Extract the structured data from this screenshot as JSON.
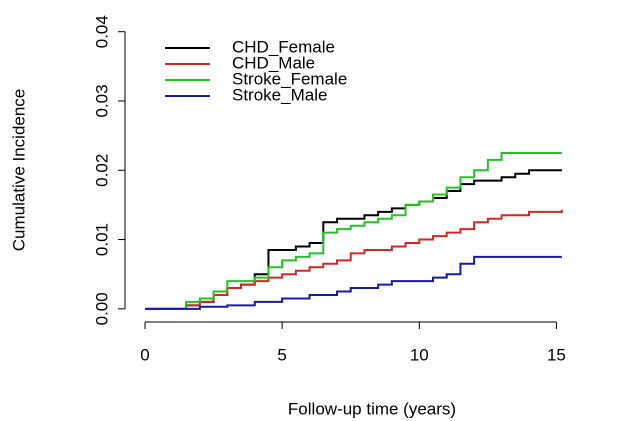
{
  "chart_data": {
    "type": "step",
    "x_label": "Follow-up time (years)",
    "y_label": "Cumulative Incidence",
    "x": [
      0,
      1,
      1.5,
      2,
      2.5,
      3,
      3.5,
      4,
      4.5,
      5,
      5.5,
      6,
      6.5,
      7,
      7.5,
      8,
      8.5,
      9,
      9.5,
      10,
      10.5,
      11,
      11.5,
      12,
      12.5,
      13,
      13.5,
      14,
      15.2
    ],
    "series": [
      {
        "name": "CHD_Female",
        "color": "#000000",
        "values": [
          0,
          0,
          0.0005,
          0.001,
          0.002,
          0.003,
          0.0035,
          0.005,
          0.0085,
          0.0085,
          0.009,
          0.0095,
          0.0125,
          0.013,
          0.013,
          0.0135,
          0.014,
          0.0145,
          0.015,
          0.0155,
          0.016,
          0.017,
          0.018,
          0.0185,
          0.0185,
          0.019,
          0.0195,
          0.02,
          0.02
        ]
      },
      {
        "name": "CHD_Male",
        "color": "#d62728",
        "values": [
          0,
          0,
          0.0005,
          0.001,
          0.002,
          0.003,
          0.0035,
          0.004,
          0.0045,
          0.005,
          0.0055,
          0.006,
          0.0065,
          0.007,
          0.008,
          0.0085,
          0.0085,
          0.009,
          0.0095,
          0.01,
          0.0105,
          0.011,
          0.0115,
          0.0125,
          0.013,
          0.0135,
          0.0135,
          0.014,
          0.0143
        ]
      },
      {
        "name": "Stroke_Female",
        "color": "#22c522",
        "values": [
          0,
          0,
          0.001,
          0.0015,
          0.0025,
          0.004,
          0.004,
          0.0045,
          0.006,
          0.007,
          0.0075,
          0.008,
          0.011,
          0.0115,
          0.012,
          0.0125,
          0.013,
          0.0135,
          0.015,
          0.0155,
          0.0165,
          0.0175,
          0.019,
          0.02,
          0.0215,
          0.0225,
          0.0225,
          0.0225,
          0.0225
        ]
      },
      {
        "name": "Stroke_Male",
        "color": "#1a1aa8",
        "values": [
          0,
          0,
          0,
          0.0003,
          0.0003,
          0.0005,
          0.0005,
          0.001,
          0.001,
          0.0015,
          0.0015,
          0.002,
          0.002,
          0.0025,
          0.003,
          0.003,
          0.0035,
          0.004,
          0.004,
          0.004,
          0.0045,
          0.005,
          0.0065,
          0.0075,
          0.0075,
          0.0075,
          0.0075,
          0.0075,
          0.0075
        ]
      }
    ],
    "xlim": [
      -0.73,
      17.5
    ],
    "ylim": [
      -0.0019,
      0.0414
    ],
    "xticks": [
      0,
      5,
      10,
      15
    ],
    "yticks": [
      {
        "value": 0,
        "label": "0.00"
      },
      {
        "value": 0.01,
        "label": "0.01"
      },
      {
        "value": 0.02,
        "label": "0.02"
      },
      {
        "value": 0.03,
        "label": "0.03"
      },
      {
        "value": 0.04,
        "label": "0.04"
      }
    ],
    "legend": "top-left"
  }
}
